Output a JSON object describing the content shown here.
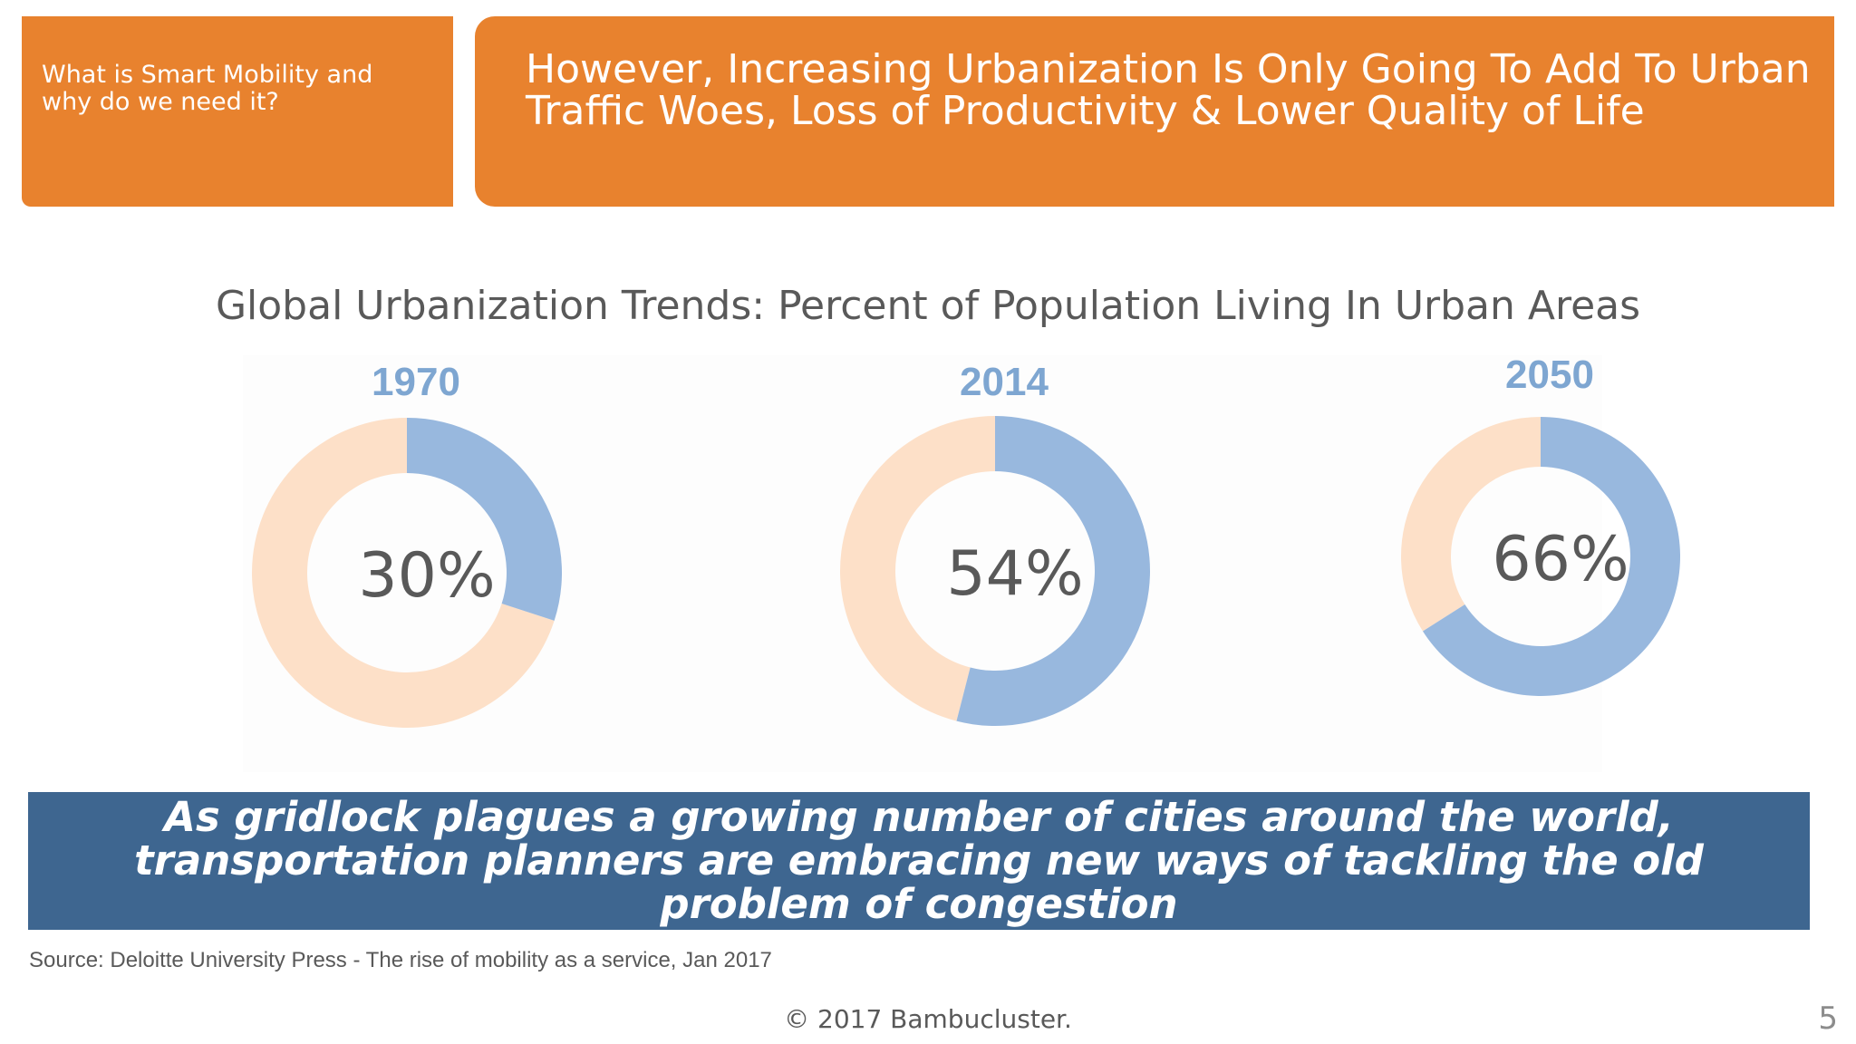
{
  "header": {
    "section_label": "What is Smart Mobility and why do we need it?",
    "title": "However, Increasing Urbanization Is Only Going To Add To Urban Traffic Woes, Loss of Productivity & Lower Quality of Life",
    "accent_color": "#e8822e"
  },
  "chart_data": {
    "type": "pie",
    "title": "Global Urbanization Trends: Percent of Population Living In Urban Areas",
    "categories": [
      "1970",
      "2014",
      "2050"
    ],
    "values": [
      30,
      54,
      66
    ],
    "labels": [
      "30%",
      "54%",
      "66%"
    ],
    "colors": {
      "urban": "#98b8de",
      "remainder": "#fde0c8",
      "year_label": "#7ea6d1",
      "value_label": "#595959"
    }
  },
  "callout": {
    "text": "As gridlock plagues a growing number of cities around the world, transportation planners are embracing new ways of tackling the old problem of congestion",
    "background": "#3e6690"
  },
  "source": "Source: Deloitte University Press - The rise of mobility as a service, Jan 2017",
  "footer": "© 2017 Bambucluster.",
  "page_number": "5"
}
